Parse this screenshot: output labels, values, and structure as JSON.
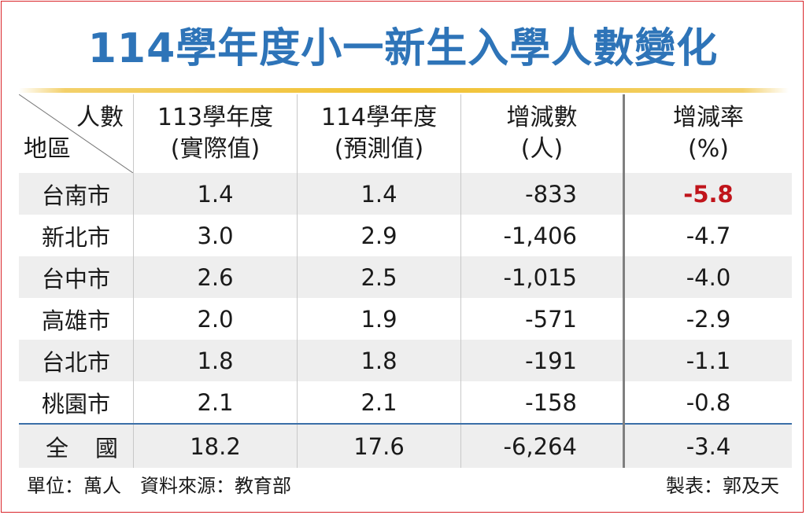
{
  "title": "114學年度小一新生入學人數變化",
  "table": {
    "corner_top": "人數",
    "corner_bottom": "地區",
    "headers": [
      {
        "line1": "113學年度",
        "line2": "(實際值)"
      },
      {
        "line1": "114學年度",
        "line2": "(預測值)"
      },
      {
        "line1": "增減數",
        "line2": "(人)"
      },
      {
        "line1": "增減率",
        "line2": "(%)"
      }
    ],
    "rows": [
      {
        "region": "台南市",
        "y113": "1.4",
        "y114": "1.4",
        "diff": "-833",
        "rate": "-5.8"
      },
      {
        "region": "新北市",
        "y113": "3.0",
        "y114": "2.9",
        "diff": "-1,406",
        "rate": "-4.7"
      },
      {
        "region": "台中市",
        "y113": "2.6",
        "y114": "2.5",
        "diff": "-1,015",
        "rate": "-4.0"
      },
      {
        "region": "高雄市",
        "y113": "2.0",
        "y114": "1.9",
        "diff": "-571",
        "rate": "-2.9"
      },
      {
        "region": "台北市",
        "y113": "1.8",
        "y114": "1.8",
        "diff": "-191",
        "rate": "-1.1"
      },
      {
        "region": "桃園市",
        "y113": "2.1",
        "y114": "2.1",
        "diff": "-158",
        "rate": "-0.8"
      }
    ],
    "total": {
      "region": "全國",
      "y113": "18.2",
      "y114": "17.6",
      "diff": "-6,264",
      "rate": "-3.4"
    }
  },
  "footer": {
    "left": "單位：萬人　資料來源：教育部",
    "right": "製表：郭及天"
  },
  "colors": {
    "title": "#2e74b8",
    "title_rule": "#f1c232",
    "border": "#d9252a",
    "highlight": "#c0141b",
    "stripe": "#eeeeee",
    "total_rule": "#3a6ea8"
  },
  "chart_data": {
    "type": "table",
    "title": "114學年度小一新生入學人數變化",
    "columns": [
      "地區",
      "113學年度(實際值)",
      "114學年度(預測值)",
      "增減數(人)",
      "增減率(%)"
    ],
    "rows": [
      [
        "台南市",
        1.4,
        1.4,
        -833,
        -5.8
      ],
      [
        "新北市",
        3.0,
        2.9,
        -1406,
        -4.7
      ],
      [
        "台中市",
        2.6,
        2.5,
        -1015,
        -4.0
      ],
      [
        "高雄市",
        2.0,
        1.9,
        -571,
        -2.9
      ],
      [
        "台北市",
        1.8,
        1.8,
        -191,
        -1.1
      ],
      [
        "桃園市",
        2.1,
        2.1,
        -158,
        -0.8
      ],
      [
        "全國",
        18.2,
        17.6,
        -6264,
        -3.4
      ]
    ],
    "units": "萬人",
    "source": "教育部"
  }
}
